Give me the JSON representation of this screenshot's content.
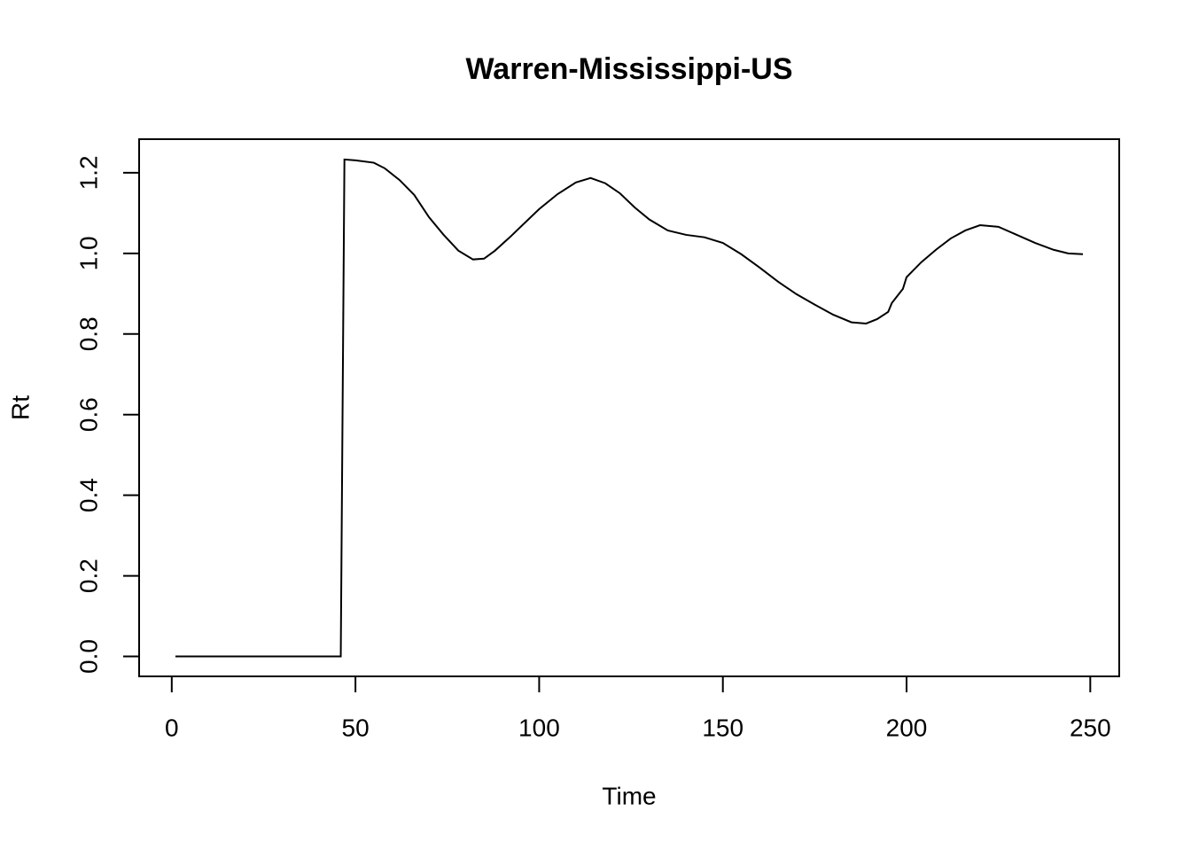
{
  "chart_data": {
    "type": "line",
    "title": "Warren-Mississippi-US",
    "x_label": "Time",
    "y_label": "Rt",
    "x": [
      1,
      46,
      47,
      50,
      55,
      58,
      62,
      66,
      70,
      74,
      78,
      82,
      85,
      88,
      92,
      96,
      100,
      105,
      110,
      114,
      118,
      122,
      126,
      130,
      135,
      140,
      145,
      150,
      155,
      160,
      165,
      170,
      175,
      180,
      185,
      189,
      192,
      195,
      196,
      199,
      200,
      204,
      208,
      212,
      216,
      220,
      225,
      230,
      235,
      240,
      244,
      248
    ],
    "values": [
      0,
      0,
      1.233,
      1.231,
      1.225,
      1.211,
      1.182,
      1.145,
      1.09,
      1.046,
      1.007,
      0.985,
      0.987,
      1.007,
      1.04,
      1.075,
      1.11,
      1.147,
      1.176,
      1.187,
      1.174,
      1.149,
      1.114,
      1.084,
      1.057,
      1.046,
      1.04,
      1.026,
      0.998,
      0.965,
      0.93,
      0.899,
      0.873,
      0.848,
      0.829,
      0.826,
      0.837,
      0.855,
      0.877,
      0.912,
      0.941,
      0.978,
      1.009,
      1.037,
      1.057,
      1.07,
      1.066,
      1.046,
      1.026,
      1.009,
      1.0,
      0.998
    ],
    "color": "#000000",
    "xlim": [
      -8.88,
      257.88
    ],
    "xticks": [
      0,
      50,
      100,
      150,
      200,
      250
    ],
    "ylim": [
      -0.0494,
      1.2834
    ],
    "yticks": [
      {
        "value": 0,
        "label": "0.0"
      },
      0.2,
      0.4,
      0.6,
      0.8,
      {
        "value": 1,
        "label": "1.0"
      },
      1.2
    ]
  }
}
